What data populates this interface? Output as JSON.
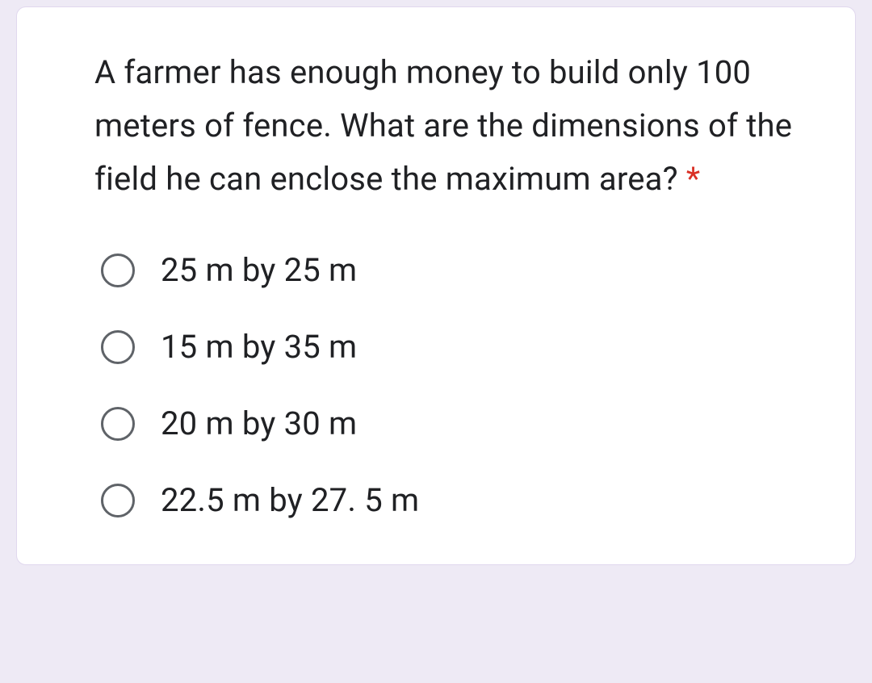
{
  "card": {
    "background_color": "#ffffff",
    "border_radius": 12,
    "border_color": "#e0d8ee"
  },
  "page_background": "#eeeaf5",
  "question": {
    "text": "A farmer has enough money to build only 100 meters of fence. What are the dimensions of the field he can enclose the maximum area?",
    "required_marker": "*",
    "text_color": "#202124",
    "fontsize": 40,
    "asterisk_color": "#d93025"
  },
  "options": [
    {
      "label": "25 m by 25 m",
      "selected": false
    },
    {
      "label": "15 m by 35 m",
      "selected": false
    },
    {
      "label": "20 m by 30 m",
      "selected": false
    },
    {
      "label": "22.5 m by 27. 5 m",
      "selected": false
    }
  ],
  "radio_style": {
    "size": 42,
    "border_width": 3,
    "border_color": "#5f6368"
  }
}
